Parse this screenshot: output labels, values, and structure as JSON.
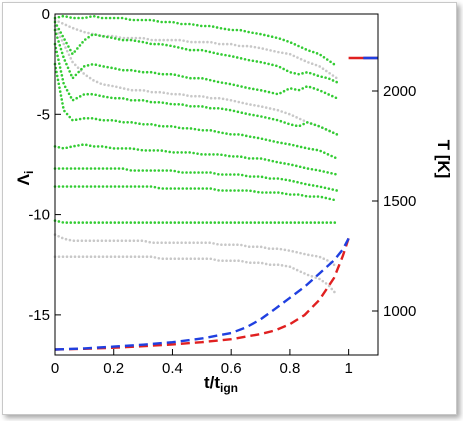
{
  "chart_data": {
    "type": "line",
    "xlabel": "t/t",
    "xlabel_sub": "ign",
    "ylabel": "Λ",
    "ylabel_sub": "i",
    "y2label": "T [K]",
    "xlim": [
      0,
      1.1
    ],
    "ylim": [
      -17,
      0
    ],
    "y2lim": [
      800,
      2350
    ],
    "x_ticks": [
      0,
      0.2,
      0.4,
      0.6,
      0.8,
      1
    ],
    "x_tick_labels": [
      "0",
      "0.2",
      "0.4",
      "0.6",
      "0.8",
      "1"
    ],
    "y_ticks": [
      0,
      -5,
      -10,
      -15
    ],
    "y_tick_labels": [
      "0",
      "-5",
      "-10",
      "-15"
    ],
    "y2_ticks": [
      1000,
      1500,
      2000
    ],
    "y2_tick_labels": [
      "1000",
      "1500",
      "2000"
    ],
    "grid": false,
    "legend": "none",
    "series": [
      {
        "style": "dashed",
        "color": "#e02020",
        "x": [
          0.0,
          0.1,
          0.2,
          0.3,
          0.4,
          0.5,
          0.6,
          0.7,
          0.75,
          0.8,
          0.85,
          0.9,
          0.95,
          0.98,
          1.0
        ],
        "y": [
          825,
          828,
          833,
          840,
          848,
          858,
          872,
          895,
          912,
          940,
          982,
          1050,
          1150,
          1250,
          1330
        ]
      },
      {
        "style": "dashed",
        "color": "#2040e0",
        "x": [
          0.0,
          0.1,
          0.2,
          0.3,
          0.4,
          0.5,
          0.6,
          0.65,
          0.7,
          0.75,
          0.8,
          0.85,
          0.9,
          0.95,
          0.98,
          1.0
        ],
        "y": [
          825,
          830,
          838,
          847,
          858,
          875,
          900,
          925,
          962,
          1010,
          1060,
          1110,
          1170,
          1230,
          1280,
          1330
        ]
      },
      {
        "style": "solid",
        "color": "#e02020",
        "x": [
          1.0,
          1.05,
          1.1
        ],
        "y": [
          2150,
          2150,
          2150
        ]
      },
      {
        "style": "solid",
        "color": "#2040e0",
        "x": [
          1.05,
          1.1
        ],
        "y": [
          2150,
          2150
        ]
      },
      {
        "style": "dotted",
        "color": "#33cc33",
        "x": [
          0.0,
          0.03,
          0.06,
          0.1,
          0.13,
          0.16,
          0.2,
          0.23,
          0.26,
          0.3,
          0.33,
          0.36,
          0.4,
          0.43,
          0.46,
          0.5,
          0.53,
          0.56,
          0.6,
          0.63,
          0.66,
          0.7,
          0.73,
          0.76,
          0.8,
          0.83,
          0.86,
          0.9,
          0.93,
          0.96
        ],
        "y": [
          -0.2,
          -0.1,
          -0.2,
          -0.2,
          -0.1,
          -0.2,
          -0.2,
          -0.2,
          -0.3,
          -0.3,
          -0.3,
          -0.4,
          -0.4,
          -0.5,
          -0.5,
          -0.6,
          -0.6,
          -0.7,
          -0.8,
          -0.8,
          -0.9,
          -1,
          -1.1,
          -1.2,
          -1.4,
          -1.6,
          -1.8,
          -2,
          -2.3,
          -2.6
        ]
      },
      {
        "style": "dotted",
        "color": "#33cc33",
        "x": [
          0.0,
          0.03,
          0.06,
          0.1,
          0.13,
          0.16,
          0.2,
          0.23,
          0.26,
          0.3,
          0.33,
          0.36,
          0.4,
          0.43,
          0.46,
          0.5,
          0.53,
          0.56,
          0.6,
          0.63,
          0.66,
          0.7,
          0.73,
          0.76,
          0.8,
          0.83,
          0.86,
          0.9,
          0.93,
          0.96
        ],
        "y": [
          -0.4,
          -1.2,
          -2,
          -1.3,
          -1,
          -1.1,
          -1.2,
          -1.3,
          -1.3,
          -1.4,
          -1.5,
          -1.5,
          -1.6,
          -1.7,
          -1.8,
          -1.8,
          -1.9,
          -2,
          -2.1,
          -2.2,
          -2.3,
          -2.4,
          -2.5,
          -2.6,
          -2.9,
          -3,
          -2.9,
          -3.1,
          -3.2,
          -3.4
        ]
      },
      {
        "style": "dotted",
        "color": "#33cc33",
        "x": [
          0.0,
          0.03,
          0.06,
          0.1,
          0.13,
          0.16,
          0.2,
          0.23,
          0.26,
          0.3,
          0.33,
          0.36,
          0.4,
          0.43,
          0.46,
          0.5,
          0.53,
          0.56,
          0.6,
          0.63,
          0.66,
          0.7,
          0.73,
          0.76,
          0.8,
          0.83,
          0.86,
          0.9,
          0.93,
          0.96
        ],
        "y": [
          -0.8,
          -2.2,
          -3.2,
          -2.6,
          -2.5,
          -2.6,
          -2.7,
          -2.8,
          -2.8,
          -2.9,
          -2.9,
          -3,
          -3,
          -3.1,
          -3.2,
          -3.2,
          -3.3,
          -3.4,
          -3.5,
          -3.6,
          -3.7,
          -3.8,
          -3.9,
          -4,
          -3.7,
          -3.8,
          -3.6,
          -3.8,
          -4,
          -4.2
        ]
      },
      {
        "style": "dotted",
        "color": "#33cc33",
        "x": [
          0.0,
          0.03,
          0.06,
          0.1,
          0.13,
          0.16,
          0.2,
          0.23,
          0.26,
          0.3,
          0.33,
          0.36,
          0.4,
          0.43,
          0.46,
          0.5,
          0.53,
          0.56,
          0.6,
          0.63,
          0.66,
          0.7,
          0.73,
          0.76,
          0.8,
          0.83,
          0.86,
          0.9,
          0.93,
          0.96
        ],
        "y": [
          -1.5,
          -3.5,
          -4.3,
          -4,
          -4,
          -4.1,
          -4.2,
          -4.2,
          -4.3,
          -4.3,
          -4.4,
          -4.4,
          -4.5,
          -4.5,
          -4.6,
          -4.6,
          -4.7,
          -4.7,
          -4.8,
          -4.9,
          -5,
          -5.1,
          -5.2,
          -5.3,
          -5.5,
          -5.6,
          -5.4,
          -5.6,
          -5.8,
          -6
        ]
      },
      {
        "style": "dotted",
        "color": "#33cc33",
        "x": [
          0.0,
          0.03,
          0.06,
          0.1,
          0.13,
          0.16,
          0.2,
          0.23,
          0.26,
          0.3,
          0.33,
          0.36,
          0.4,
          0.43,
          0.46,
          0.5,
          0.53,
          0.56,
          0.6,
          0.63,
          0.66,
          0.7,
          0.73,
          0.76,
          0.8,
          0.83,
          0.86,
          0.9,
          0.93,
          0.96
        ],
        "y": [
          -2.5,
          -4.8,
          -5.3,
          -5.2,
          -5.2,
          -5.3,
          -5.3,
          -5.4,
          -5.4,
          -5.5,
          -5.5,
          -5.6,
          -5.6,
          -5.7,
          -5.7,
          -5.8,
          -5.8,
          -5.9,
          -6,
          -6,
          -6.1,
          -6.2,
          -6.3,
          -6.4,
          -6.5,
          -6.6,
          -6.7,
          -6.8,
          -7,
          -7.2
        ]
      },
      {
        "style": "dotted",
        "color": "#33cc33",
        "x": [
          0.0,
          0.03,
          0.06,
          0.1,
          0.13,
          0.16,
          0.2,
          0.23,
          0.26,
          0.3,
          0.33,
          0.36,
          0.4,
          0.43,
          0.46,
          0.5,
          0.53,
          0.56,
          0.6,
          0.63,
          0.66,
          0.7,
          0.73,
          0.76,
          0.8,
          0.83,
          0.86,
          0.9,
          0.93,
          0.96
        ],
        "y": [
          -6.6,
          -6.7,
          -6.6,
          -6.5,
          -6.6,
          -6.6,
          -6.7,
          -6.7,
          -6.7,
          -6.8,
          -6.8,
          -6.8,
          -6.9,
          -6.9,
          -6.9,
          -7,
          -7,
          -7,
          -7.1,
          -7.1,
          -7.2,
          -7.2,
          -7.3,
          -7.4,
          -7.5,
          -7.6,
          -7.7,
          -7.8,
          -7.9,
          -8
        ]
      },
      {
        "style": "dotted",
        "color": "#33cc33",
        "x": [
          0.0,
          0.03,
          0.06,
          0.1,
          0.13,
          0.16,
          0.2,
          0.23,
          0.26,
          0.3,
          0.33,
          0.36,
          0.4,
          0.43,
          0.46,
          0.5,
          0.53,
          0.56,
          0.6,
          0.63,
          0.66,
          0.7,
          0.73,
          0.76,
          0.8,
          0.83,
          0.86,
          0.9,
          0.93,
          0.96
        ],
        "y": [
          -7.7,
          -7.7,
          -7.7,
          -7.7,
          -7.7,
          -7.7,
          -7.7,
          -7.7,
          -7.8,
          -7.8,
          -7.8,
          -7.8,
          -7.8,
          -7.9,
          -7.9,
          -7.9,
          -7.9,
          -8,
          -8,
          -8,
          -8.1,
          -8.1,
          -8.2,
          -8.2,
          -8.3,
          -8.4,
          -8.5,
          -8.6,
          -8.7,
          -8.8
        ]
      },
      {
        "style": "dotted",
        "color": "#33cc33",
        "x": [
          0.0,
          0.03,
          0.06,
          0.1,
          0.13,
          0.16,
          0.2,
          0.23,
          0.26,
          0.3,
          0.33,
          0.36,
          0.4,
          0.43,
          0.46,
          0.5,
          0.53,
          0.56,
          0.6,
          0.63,
          0.66,
          0.7,
          0.73,
          0.76,
          0.8,
          0.83,
          0.86,
          0.9,
          0.93,
          0.96
        ],
        "y": [
          -8.6,
          -8.6,
          -8.6,
          -8.6,
          -8.6,
          -8.6,
          -8.6,
          -8.6,
          -8.6,
          -8.6,
          -8.6,
          -8.7,
          -8.7,
          -8.7,
          -8.7,
          -8.7,
          -8.7,
          -8.8,
          -8.8,
          -8.8,
          -8.8,
          -8.9,
          -8.9,
          -8.9,
          -9,
          -9,
          -9.1,
          -9.1,
          -9.2,
          -9.3
        ]
      },
      {
        "style": "dotted",
        "color": "#33cc33",
        "x": [
          0.0,
          0.03,
          0.06,
          0.1,
          0.13,
          0.16,
          0.2,
          0.23,
          0.26,
          0.3,
          0.33,
          0.36,
          0.4,
          0.43,
          0.46,
          0.5,
          0.53,
          0.56,
          0.6,
          0.63,
          0.66,
          0.7,
          0.73,
          0.76,
          0.8,
          0.83,
          0.86,
          0.9,
          0.93,
          0.96
        ],
        "y": [
          -10.3,
          -10.4,
          -10.4,
          -10.4,
          -10.4,
          -10.4,
          -10.4,
          -10.4,
          -10.4,
          -10.4,
          -10.4,
          -10.4,
          -10.4,
          -10.4,
          -10.4,
          -10.4,
          -10.4,
          -10.4,
          -10.4,
          -10.4,
          -10.4,
          -10.4,
          -10.4,
          -10.4,
          -10.4,
          -10.4,
          -10.4,
          -10.4,
          -10.4,
          -10.4
        ]
      },
      {
        "style": "dotted",
        "color": "#c8c8c8",
        "x": [
          0.0,
          0.03,
          0.06,
          0.1,
          0.13,
          0.16,
          0.2,
          0.23,
          0.26,
          0.3,
          0.33,
          0.36,
          0.4,
          0.43,
          0.46,
          0.5,
          0.53,
          0.56,
          0.6,
          0.63,
          0.66,
          0.7,
          0.73,
          0.76,
          0.8,
          0.83,
          0.86,
          0.9,
          0.93,
          0.96
        ],
        "y": [
          -11,
          -11.2,
          -11.3,
          -11.3,
          -11.3,
          -11.3,
          -11.3,
          -11.3,
          -11.3,
          -11.3,
          -11.4,
          -11.4,
          -11.4,
          -11.4,
          -11.4,
          -11.4,
          -11.4,
          -11.5,
          -11.5,
          -11.5,
          -11.6,
          -11.6,
          -11.7,
          -11.7,
          -11.8,
          -11.9,
          -12,
          -12.1,
          -12.3,
          -12.6
        ]
      },
      {
        "style": "dotted",
        "color": "#c8c8c8",
        "x": [
          0.0,
          0.03,
          0.06,
          0.1,
          0.13,
          0.16,
          0.2,
          0.23,
          0.26,
          0.3,
          0.33,
          0.36,
          0.4,
          0.43,
          0.46,
          0.5,
          0.53,
          0.56,
          0.6,
          0.63,
          0.66,
          0.7,
          0.73,
          0.76,
          0.8,
          0.83,
          0.86,
          0.9,
          0.93,
          0.96
        ],
        "y": [
          -12.1,
          -12.1,
          -12.1,
          -12.1,
          -12.1,
          -12.1,
          -12.1,
          -12.1,
          -12.1,
          -12.1,
          -12.1,
          -12.2,
          -12.2,
          -12.2,
          -12.2,
          -12.2,
          -12.2,
          -12.3,
          -12.3,
          -12.3,
          -12.4,
          -12.4,
          -12.5,
          -12.5,
          -12.6,
          -12.8,
          -13,
          -13.2,
          -13.5,
          -14
        ]
      },
      {
        "style": "dotted",
        "color": "#c8c8c8",
        "x": [
          0.0,
          0.03,
          0.06,
          0.1,
          0.13,
          0.16,
          0.2,
          0.23,
          0.26,
          0.3,
          0.33,
          0.36,
          0.4,
          0.43,
          0.46,
          0.5,
          0.53,
          0.56,
          0.6,
          0.63,
          0.66,
          0.7,
          0.73,
          0.76,
          0.8,
          0.83,
          0.86,
          0.9,
          0.93,
          0.96
        ],
        "y": [
          -0.6,
          -1.5,
          -2.4,
          -3,
          -3.3,
          -3.5,
          -3.6,
          -3.7,
          -3.8,
          -3.8,
          -3.9,
          -3.9,
          -4,
          -4,
          -4.1,
          -4.1,
          -4.2,
          -4.2,
          -4.3,
          -4.4,
          -4.5,
          -4.6,
          -4.7,
          -4.8,
          -5,
          -5.2,
          -5.4,
          -5.6,
          -5.8,
          -6
        ]
      },
      {
        "style": "dotted",
        "color": "#c8c8c8",
        "x": [
          0.0,
          0.03,
          0.06,
          0.1,
          0.13,
          0.16,
          0.2,
          0.23,
          0.26,
          0.3,
          0.33,
          0.36,
          0.4,
          0.43,
          0.46,
          0.5,
          0.53,
          0.56,
          0.6,
          0.63,
          0.66,
          0.7,
          0.73,
          0.76,
          0.8,
          0.83,
          0.86,
          0.9,
          0.93,
          0.96
        ],
        "y": [
          -0.3,
          -0.5,
          -0.7,
          -0.9,
          -1,
          -1.1,
          -1.1,
          -1.2,
          -1.2,
          -1.2,
          -1.3,
          -1.3,
          -1.3,
          -1.3,
          -1.4,
          -1.4,
          -1.4,
          -1.5,
          -1.5,
          -1.6,
          -1.6,
          -1.7,
          -1.8,
          -1.9,
          -2,
          -2.2,
          -2.4,
          -2.6,
          -2.9,
          -3.2
        ]
      }
    ]
  }
}
